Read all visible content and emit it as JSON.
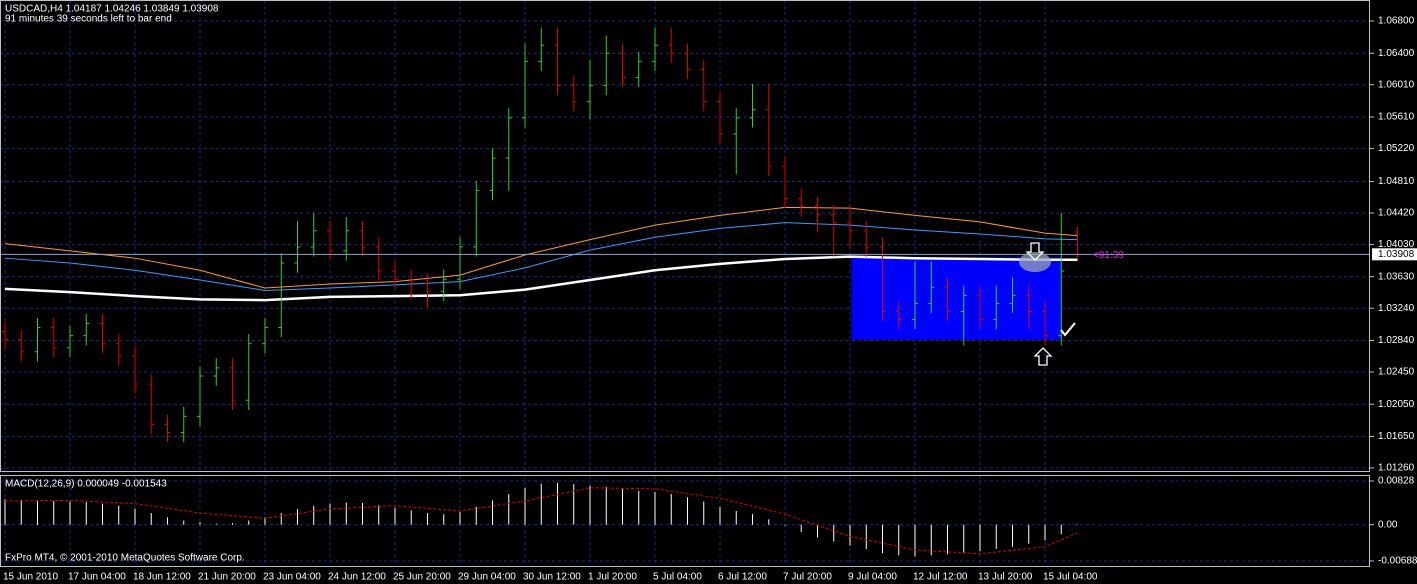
{
  "chart_data": [
    {
      "type": "ohlc",
      "title": "USDCAD,H4  1.04187 1.04246 1.03849 1.03908",
      "subtitle": "91 minutes 39 seconds left to bar end",
      "categories": [
        "15 Jun 2010",
        null,
        null,
        null,
        "17 Jun 04:00",
        null,
        null,
        null,
        "18 Jun 12:00",
        null,
        null,
        null,
        "21 Jun 20:00",
        null,
        null,
        null,
        "23 Jun 04:00",
        null,
        null,
        null,
        "24 Jun 12:00",
        null,
        null,
        null,
        "25 Jun 20:00",
        null,
        null,
        null,
        "29 Jun 04:00",
        null,
        null,
        null,
        "30 Jun 12:00",
        null,
        null,
        null,
        "1 Jul 20:00",
        null,
        null,
        null,
        "5 Jul 04:00",
        null,
        null,
        null,
        "6 Jul 12:00",
        null,
        null,
        null,
        "7 Jul 20:00",
        null,
        null,
        null,
        "9 Jul 04:00",
        null,
        null,
        null,
        "12 Jul 12:00",
        null,
        null,
        null,
        "13 Jul 20:00",
        null,
        null,
        null,
        "15 Jul 04:00",
        null,
        null
      ],
      "open": [
        1.0295,
        1.0285,
        1.027,
        1.03,
        1.0275,
        1.029,
        1.0305,
        1.028,
        1.0265,
        1.023,
        1.018,
        1.017,
        1.019,
        1.024,
        1.025,
        1.021,
        1.028,
        1.03,
        1.038,
        1.04,
        1.042,
        1.0395,
        1.042,
        1.04,
        1.037,
        1.036,
        1.0355,
        1.0345,
        1.036,
        1.04,
        1.047,
        1.051,
        1.056,
        1.063,
        1.065,
        1.06,
        1.058,
        1.06,
        1.064,
        1.061,
        1.063,
        1.065,
        1.064,
        1.062,
        1.058,
        1.054,
        1.056,
        1.057,
        1.05,
        1.046,
        1.045,
        1.044,
        1.043,
        1.042,
        1.04,
        1.032,
        1.031,
        1.033,
        1.035,
        1.032,
        1.034,
        1.031,
        1.033,
        1.034,
        1.032,
        1.029,
        1.04187
      ],
      "high": [
        1.0307,
        1.0297,
        1.0312,
        1.0312,
        1.0302,
        1.0317,
        1.0317,
        1.0292,
        1.0277,
        1.0242,
        1.0192,
        1.0202,
        1.0252,
        1.0262,
        1.0262,
        1.0292,
        1.0312,
        1.0392,
        1.0432,
        1.0442,
        1.0432,
        1.0437,
        1.0432,
        1.0412,
        1.0382,
        1.0372,
        1.0367,
        1.0372,
        1.0412,
        1.0482,
        1.0522,
        1.0572,
        1.0652,
        1.0672,
        1.0672,
        1.0612,
        1.0632,
        1.0662,
        1.0652,
        1.0642,
        1.0672,
        1.0672,
        1.0652,
        1.0632,
        1.0592,
        1.0572,
        1.0602,
        1.0602,
        1.0512,
        1.0472,
        1.0462,
        1.0452,
        1.0452,
        1.0432,
        1.0412,
        1.0332,
        1.0382,
        1.0382,
        1.0362,
        1.0352,
        1.0352,
        1.0352,
        1.0362,
        1.0352,
        1.0332,
        1.0442,
        1.04246
      ],
      "low": [
        1.0273,
        1.0258,
        1.0258,
        1.0263,
        1.0263,
        1.0278,
        1.0268,
        1.0253,
        1.0218,
        1.0168,
        1.0158,
        1.0158,
        1.0178,
        1.0228,
        1.0198,
        1.0198,
        1.0268,
        1.0288,
        1.0368,
        1.0388,
        1.0383,
        1.0383,
        1.0388,
        1.0358,
        1.0348,
        1.0335,
        1.0325,
        1.0333,
        1.0348,
        1.0388,
        1.0458,
        1.047,
        1.0548,
        1.0618,
        1.0588,
        1.0568,
        1.0558,
        1.0588,
        1.0598,
        1.0598,
        1.0618,
        1.0628,
        1.0608,
        1.0568,
        1.0528,
        1.049,
        1.0548,
        1.0488,
        1.0448,
        1.0438,
        1.0418,
        1.0388,
        1.0398,
        1.0388,
        1.0308,
        1.0298,
        1.0298,
        1.0318,
        1.0308,
        1.0278,
        1.0298,
        1.0298,
        1.0318,
        1.0298,
        1.0278,
        1.0278,
        1.03849
      ],
      "close": [
        1.0285,
        1.027,
        1.03,
        1.0275,
        1.029,
        1.0305,
        1.028,
        1.0265,
        1.023,
        1.018,
        1.017,
        1.019,
        1.024,
        1.025,
        1.021,
        1.028,
        1.03,
        1.038,
        1.04,
        1.042,
        1.0395,
        1.042,
        1.04,
        1.037,
        1.036,
        1.0355,
        1.0345,
        1.036,
        1.04,
        1.047,
        1.051,
        1.056,
        1.063,
        1.065,
        1.06,
        1.058,
        1.06,
        1.064,
        1.061,
        1.063,
        1.065,
        1.064,
        1.062,
        1.058,
        1.054,
        1.056,
        1.057,
        1.05,
        1.046,
        1.045,
        1.044,
        1.043,
        1.042,
        1.04,
        1.032,
        1.031,
        1.033,
        1.035,
        1.032,
        1.034,
        1.031,
        1.033,
        1.034,
        1.032,
        1.029,
        1.037,
        1.03908
      ],
      "up_color": "#32cd32",
      "down_color": "#e00000",
      "ma": {
        "x": [
          0,
          4,
          8,
          12,
          16,
          20,
          24,
          28,
          32,
          36,
          40,
          44,
          48,
          52,
          56,
          60,
          64,
          66
        ],
        "series": [
          {
            "color": "#ff9c2a",
            "values": [
              1.0404,
              1.0395,
              1.0386,
              1.0371,
              1.0349,
              1.0354,
              1.0357,
              1.0365,
              1.039,
              1.0409,
              1.0427,
              1.0439,
              1.0449,
              1.0448,
              1.0439,
              1.0431,
              1.0417,
              1.0414
            ]
          },
          {
            "color": "#3a9bff",
            "values": [
              1.0386,
              1.038,
              1.0371,
              1.0359,
              1.0346,
              1.0349,
              1.0353,
              1.0357,
              1.0374,
              1.0396,
              1.0412,
              1.0423,
              1.043,
              1.0427,
              1.0421,
              1.0416,
              1.041,
              1.0409
            ]
          },
          {
            "color": "#ffffff",
            "values": [
              1.0348,
              1.0344,
              1.0339,
              1.0335,
              1.0334,
              1.0338,
              1.0339,
              1.034,
              1.0347,
              1.0359,
              1.0371,
              1.0379,
              1.0385,
              1.0388,
              1.0386,
              1.0385,
              1.0384,
              1.0384
            ]
          }
        ]
      },
      "ylim": [
        1.0121,
        1.0706
      ],
      "yticks": [
        {
          "value": 1.068,
          "label": "1.06800"
        },
        {
          "value": 1.064,
          "label": "1.06400"
        },
        {
          "value": 1.0601,
          "label": "1.06010"
        },
        {
          "value": 1.0561,
          "label": "1.05610"
        },
        {
          "value": 1.0522,
          "label": "1.05220"
        },
        {
          "value": 1.0481,
          "label": "1.04810"
        },
        {
          "value": 1.0442,
          "label": "1.04420"
        },
        {
          "value": 1.0403,
          "label": "1.04030"
        },
        {
          "value": 1.0363,
          "label": "1.03630"
        },
        {
          "value": 1.0324,
          "label": "1.03240"
        },
        {
          "value": 1.0284,
          "label": "1.02840"
        },
        {
          "value": 1.0245,
          "label": "1.02450"
        },
        {
          "value": 1.0205,
          "label": "1.02050"
        },
        {
          "value": 1.0165,
          "label": "1.01650"
        },
        {
          "value": 1.0126,
          "label": "1.01260"
        }
      ],
      "grid": true,
      "current": {
        "value": 1.03908,
        "label": "1.03908"
      },
      "timer": "<91:39",
      "box": {
        "x": [
          52.1,
          65
        ],
        "y": [
          1.0387,
          1.0285
        ],
        "color": "#0000ff"
      }
    },
    {
      "type": "macd",
      "title": "MACD(12,26,9) 0.000049 -0.001543",
      "values": [
        0.0048,
        0.0047,
        0.0046,
        0.0045,
        0.0044,
        0.0043,
        0.004,
        0.0036,
        0.003,
        0.0022,
        0.0014,
        0.0008,
        0.0005,
        0.0002,
        0.0003,
        0.0008,
        0.0014,
        0.0022,
        0.003,
        0.0036,
        0.004,
        0.0042,
        0.0041,
        0.0037,
        0.0032,
        0.0027,
        0.0022,
        0.002,
        0.0024,
        0.0034,
        0.0046,
        0.0058,
        0.007,
        0.0078,
        0.0079,
        0.0077,
        0.0074,
        0.0072,
        0.0068,
        0.0064,
        0.0062,
        0.0058,
        0.0052,
        0.0044,
        0.0034,
        0.0026,
        0.002,
        0.001,
        -0.0002,
        -0.0014,
        -0.0024,
        -0.0032,
        -0.004,
        -0.0046,
        -0.0054,
        -0.0058,
        -0.006,
        -0.0058,
        -0.0056,
        -0.0054,
        -0.005,
        -0.0046,
        -0.0042,
        -0.0036,
        -0.003,
        -0.0018,
        4.9e-05
      ],
      "color": "#ffffff",
      "signal": {
        "color": "#e00000",
        "x": [
          0,
          4,
          8,
          12,
          16,
          20,
          24,
          28,
          32,
          36,
          40,
          44,
          48,
          52,
          56,
          60,
          64,
          66
        ],
        "values": [
          0.0045,
          0.0046,
          0.004,
          0.0022,
          0.0012,
          0.003,
          0.0036,
          0.0026,
          0.0045,
          0.007,
          0.0068,
          0.005,
          0.002,
          -0.0022,
          -0.0048,
          -0.0055,
          -0.0042,
          -0.001543
        ]
      },
      "ylim": [
        -0.00783,
        0.00923
      ],
      "yticks": [
        {
          "value": 0.00828,
          "label": "0.00828"
        },
        {
          "value": 0,
          "label": "0.00"
        },
        {
          "value": -0.00688,
          "label": "-0.00688"
        }
      ],
      "grid": true
    }
  ],
  "footer": "FxPro MT4, © 2001-2010 MetaQuotes Software Corp."
}
